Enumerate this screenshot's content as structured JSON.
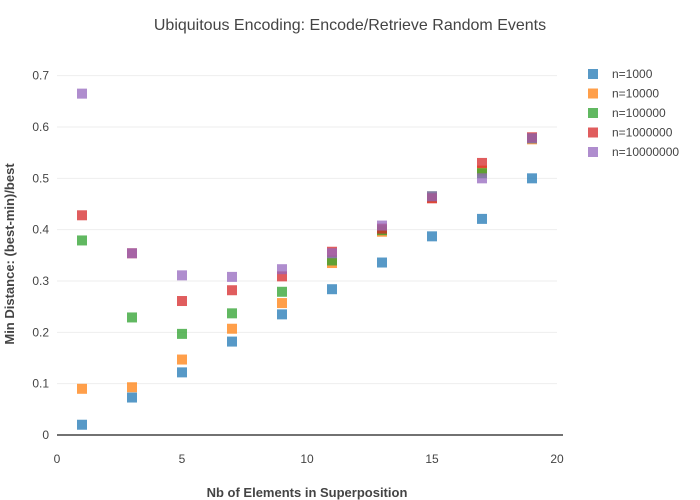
{
  "chart_data": {
    "type": "scatter",
    "title": "Ubiquitous Encoding: Encode/Retrieve Random Events",
    "xlabel": "Nb of Elements in Superposition",
    "ylabel": "Min Distance: (best-min)/best",
    "xlim": [
      0,
      20
    ],
    "ylim": [
      0,
      0.75
    ],
    "x_ticks": [
      "0",
      "5",
      "10",
      "15",
      "20"
    ],
    "x_tick_values": [
      0,
      5,
      10,
      15,
      20
    ],
    "y_ticks": [
      "0",
      "0.1",
      "0.2",
      "0.3",
      "0.4",
      "0.5",
      "0.6",
      "0.7"
    ],
    "y_tick_values": [
      0,
      0.1,
      0.2,
      0.3,
      0.4,
      0.5,
      0.6,
      0.7
    ],
    "grid": true,
    "legend_position": "top-right",
    "series": [
      {
        "name": "n=1000",
        "color": "#1f77b4",
        "x": [
          1,
          3,
          5,
          7,
          9,
          11,
          13,
          15,
          17,
          19
        ],
        "y": [
          0.02,
          0.073,
          0.122,
          0.182,
          0.235,
          0.284,
          0.336,
          0.387,
          0.421,
          0.5
        ]
      },
      {
        "name": "n=10000",
        "color": "#ff7f0e",
        "x": [
          1,
          3,
          5,
          7,
          9,
          11,
          13,
          15,
          17,
          19
        ],
        "y": [
          0.09,
          0.093,
          0.147,
          0.207,
          0.257,
          0.335,
          0.396,
          0.462,
          0.515,
          0.576
        ]
      },
      {
        "name": "n=100000",
        "color": "#2ca02c",
        "x": [
          1,
          3,
          5,
          7,
          9,
          11,
          13,
          15,
          17,
          19
        ],
        "y": [
          0.379,
          0.229,
          0.197,
          0.237,
          0.279,
          0.34,
          0.399,
          0.465,
          0.51,
          0.578
        ]
      },
      {
        "name": "n=1000000",
        "color": "#d62728",
        "x": [
          1,
          3,
          5,
          7,
          9,
          11,
          13,
          15,
          17,
          19
        ],
        "y": [
          0.428,
          0.354,
          0.261,
          0.282,
          0.309,
          0.357,
          0.402,
          0.461,
          0.53,
          0.58
        ]
      },
      {
        "name": "n=10000000",
        "color": "#9467bd",
        "x": [
          1,
          3,
          5,
          7,
          9,
          11,
          13,
          15,
          17,
          19
        ],
        "y": [
          0.665,
          0.354,
          0.311,
          0.308,
          0.323,
          0.354,
          0.408,
          0.465,
          0.5,
          0.578
        ]
      }
    ]
  }
}
